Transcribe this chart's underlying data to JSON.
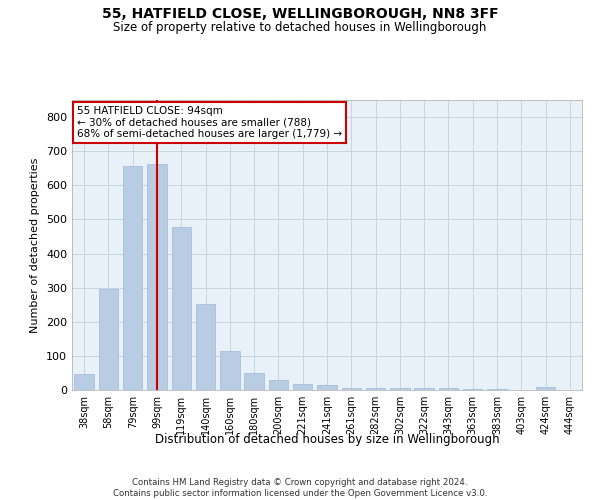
{
  "title1": "55, HATFIELD CLOSE, WELLINGBOROUGH, NN8 3FF",
  "title2": "Size of property relative to detached houses in Wellingborough",
  "xlabel": "Distribution of detached houses by size in Wellingborough",
  "ylabel": "Number of detached properties",
  "categories": [
    "38sqm",
    "58sqm",
    "79sqm",
    "99sqm",
    "119sqm",
    "140sqm",
    "160sqm",
    "180sqm",
    "200sqm",
    "221sqm",
    "241sqm",
    "261sqm",
    "282sqm",
    "302sqm",
    "322sqm",
    "343sqm",
    "363sqm",
    "383sqm",
    "403sqm",
    "424sqm",
    "444sqm"
  ],
  "values": [
    46,
    295,
    656,
    663,
    477,
    252,
    113,
    51,
    29,
    19,
    14,
    7,
    5,
    5,
    5,
    6,
    4,
    4,
    1,
    9,
    1
  ],
  "bar_color": "#b8cce4",
  "bar_edge_color": "#a0b8d8",
  "vline_x": 3,
  "vline_color": "#cc0000",
  "annotation_line1": "55 HATFIELD CLOSE: 94sqm",
  "annotation_line2": "← 30% of detached houses are smaller (788)",
  "annotation_line3": "68% of semi-detached houses are larger (1,779) →",
  "annotation_box_color": "#ffffff",
  "annotation_box_edge": "#cc0000",
  "grid_color": "#c8d4e0",
  "background_color": "#e8f0f8",
  "footer": "Contains HM Land Registry data © Crown copyright and database right 2024.\nContains public sector information licensed under the Open Government Licence v3.0.",
  "ylim": [
    0,
    850
  ],
  "yticks": [
    0,
    100,
    200,
    300,
    400,
    500,
    600,
    700,
    800
  ]
}
